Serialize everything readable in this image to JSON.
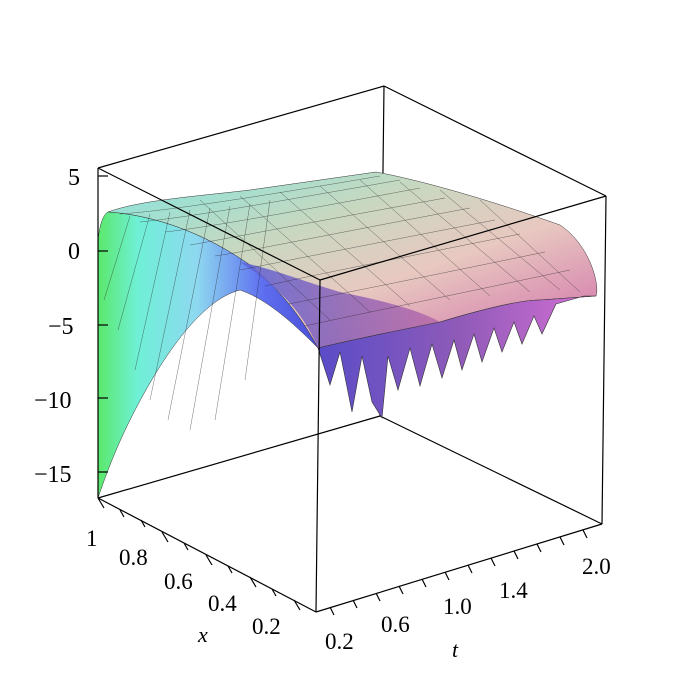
{
  "chart_data": {
    "type": "surface3d",
    "xlabel": "x",
    "ylabel": "t",
    "zlabel": "",
    "x_range": [
      0,
      1
    ],
    "t_range": [
      0,
      2
    ],
    "z_range": [
      -17,
      5
    ],
    "z_ticks": [
      "5",
      "0",
      "−5",
      "−10",
      "−15"
    ],
    "x_ticks": [
      "1",
      "0.8",
      "0.6",
      "0.4",
      "0.2"
    ],
    "t_ticks": [
      "0.2",
      "0.6",
      "1.0",
      "1.4",
      "2.0"
    ],
    "surface_description": "Surface rising from about -17 at x=1 to about 3 near x=0.9, then decreasing across t; edge at x≈0 shows an oscillating spiky profile reaching about -11 near small t and about -3 at t=2",
    "samples": {
      "x": [
        1.0,
        0.9,
        0.7,
        0.5,
        0.3,
        0.1
      ],
      "t": [
        0.0,
        0.5,
        1.0,
        1.5,
        2.0
      ],
      "z_at_t0": [
        -17,
        3,
        1,
        -1,
        -4,
        -9
      ],
      "z_at_t2": [
        -2,
        3,
        2.5,
        1.5,
        0,
        -3
      ]
    },
    "colormap": "hue (green to cyan to blue to magenta to pink)",
    "grid": true
  }
}
